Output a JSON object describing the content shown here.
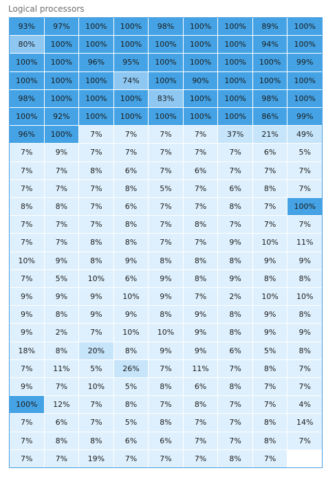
{
  "title": "Logical processors",
  "colors": {
    "very_high": "#45a3e5",
    "high_light": "#8dc7f2",
    "mid": "#c6e4fa",
    "low": "#def0fd",
    "border": "#4a9ede"
  },
  "rows": [
    [
      "93%",
      "97%",
      "100%",
      "100%",
      "98%",
      "100%",
      "100%",
      "89%",
      "100%"
    ],
    [
      "80%",
      "100%",
      "100%",
      "100%",
      "100%",
      "100%",
      "100%",
      "94%",
      "100%"
    ],
    [
      "100%",
      "100%",
      "96%",
      "95%",
      "100%",
      "100%",
      "100%",
      "100%",
      "99%"
    ],
    [
      "100%",
      "100%",
      "100%",
      "74%",
      "100%",
      "90%",
      "100%",
      "100%",
      "100%"
    ],
    [
      "98%",
      "100%",
      "100%",
      "100%",
      "83%",
      "100%",
      "100%",
      "98%",
      "100%"
    ],
    [
      "100%",
      "92%",
      "100%",
      "100%",
      "100%",
      "100%",
      "100%",
      "86%",
      "99%"
    ],
    [
      "96%",
      "100%",
      "7%",
      "7%",
      "7%",
      "7%",
      "37%",
      "21%",
      "49%"
    ],
    [
      "7%",
      "9%",
      "7%",
      "7%",
      "7%",
      "7%",
      "7%",
      "6%",
      "5%"
    ],
    [
      "7%",
      "7%",
      "8%",
      "6%",
      "7%",
      "6%",
      "7%",
      "7%",
      "7%"
    ],
    [
      "7%",
      "7%",
      "7%",
      "8%",
      "5%",
      "7%",
      "6%",
      "8%",
      "7%"
    ],
    [
      "8%",
      "8%",
      "7%",
      "6%",
      "7%",
      "7%",
      "8%",
      "7%",
      "100%"
    ],
    [
      "7%",
      "7%",
      "7%",
      "8%",
      "7%",
      "8%",
      "7%",
      "7%",
      "7%"
    ],
    [
      "7%",
      "7%",
      "8%",
      "8%",
      "7%",
      "7%",
      "9%",
      "10%",
      "11%"
    ],
    [
      "10%",
      "9%",
      "8%",
      "9%",
      "8%",
      "8%",
      "8%",
      "9%",
      "9%"
    ],
    [
      "7%",
      "5%",
      "10%",
      "6%",
      "9%",
      "8%",
      "9%",
      "8%",
      "8%"
    ],
    [
      "9%",
      "9%",
      "9%",
      "10%",
      "9%",
      "7%",
      "2%",
      "10%",
      "10%"
    ],
    [
      "9%",
      "8%",
      "9%",
      "9%",
      "8%",
      "9%",
      "8%",
      "9%",
      "8%"
    ],
    [
      "9%",
      "2%",
      "7%",
      "10%",
      "10%",
      "9%",
      "8%",
      "9%",
      "9%"
    ],
    [
      "18%",
      "8%",
      "20%",
      "8%",
      "9%",
      "9%",
      "6%",
      "5%",
      "8%"
    ],
    [
      "7%",
      "11%",
      "5%",
      "26%",
      "7%",
      "11%",
      "7%",
      "8%",
      "7%"
    ],
    [
      "9%",
      "7%",
      "10%",
      "5%",
      "8%",
      "6%",
      "8%",
      "7%",
      "7%"
    ],
    [
      "100%",
      "12%",
      "7%",
      "8%",
      "7%",
      "8%",
      "7%",
      "7%",
      "4%"
    ],
    [
      "7%",
      "6%",
      "7%",
      "5%",
      "8%",
      "7%",
      "7%",
      "8%",
      "14%"
    ],
    [
      "7%",
      "8%",
      "8%",
      "6%",
      "6%",
      "7%",
      "7%",
      "8%",
      "7%"
    ],
    [
      "7%",
      "7%",
      "19%",
      "7%",
      "7%",
      "7%",
      "8%",
      "7%",
      ""
    ]
  ]
}
